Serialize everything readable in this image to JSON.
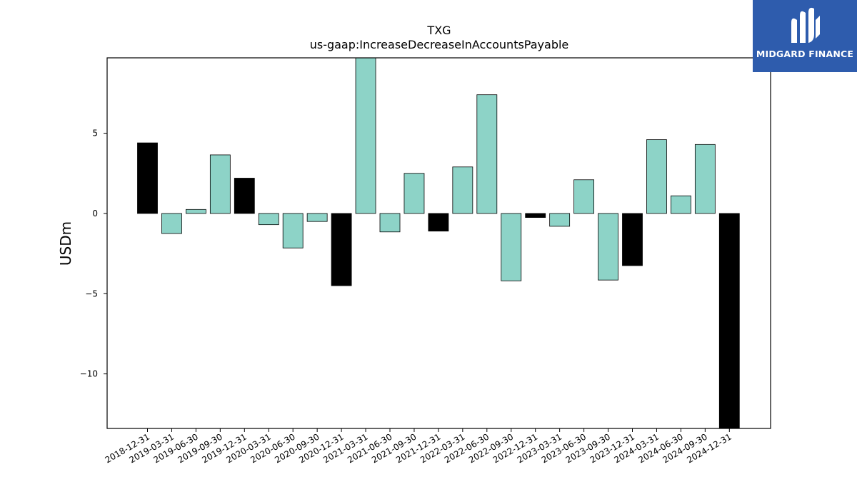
{
  "brand": {
    "name": "MIDGARD FINANCE",
    "bg": "#2e5cad",
    "icon": "midgard-logo-icon"
  },
  "chart_data": {
    "type": "bar",
    "title": "TXG",
    "subtitle": "us-gaap:IncreaseDecreaseInAccountsPayable",
    "xlabel": "",
    "ylabel": "USDm",
    "ylim": [
      -13.4,
      9.7
    ],
    "yticks": [
      -10,
      -5,
      0,
      5
    ],
    "ytick_labels": [
      "−10",
      "−5",
      "0",
      "5"
    ],
    "grid": false,
    "categories": [
      "2018-12-31",
      "2019-03-31",
      "2019-06-30",
      "2019-09-30",
      "2019-12-31",
      "2020-03-31",
      "2020-06-30",
      "2020-09-30",
      "2020-12-31",
      "2021-03-31",
      "2021-06-30",
      "2021-09-30",
      "2021-12-31",
      "2022-03-31",
      "2022-06-30",
      "2022-09-30",
      "2022-12-31",
      "2023-03-31",
      "2023-06-30",
      "2023-09-30",
      "2023-12-31",
      "2024-03-31",
      "2024-06-30",
      "2024-09-30",
      "2024-12-31"
    ],
    "values": [
      4.4,
      -1.25,
      0.25,
      3.65,
      2.2,
      -0.7,
      -2.15,
      -0.5,
      -4.5,
      9.7,
      -1.15,
      2.5,
      -1.1,
      2.9,
      7.4,
      -4.2,
      -0.25,
      -0.8,
      2.1,
      -4.15,
      -3.25,
      4.6,
      1.1,
      4.3,
      -13.4
    ],
    "quarter_end_flags": [
      true,
      false,
      false,
      false,
      true,
      false,
      false,
      false,
      true,
      false,
      false,
      false,
      true,
      false,
      false,
      false,
      true,
      false,
      false,
      false,
      true,
      false,
      false,
      false,
      true
    ],
    "colors": {
      "regular": "#8dd3c7",
      "annual": "#000000",
      "edge": "#000000"
    }
  }
}
